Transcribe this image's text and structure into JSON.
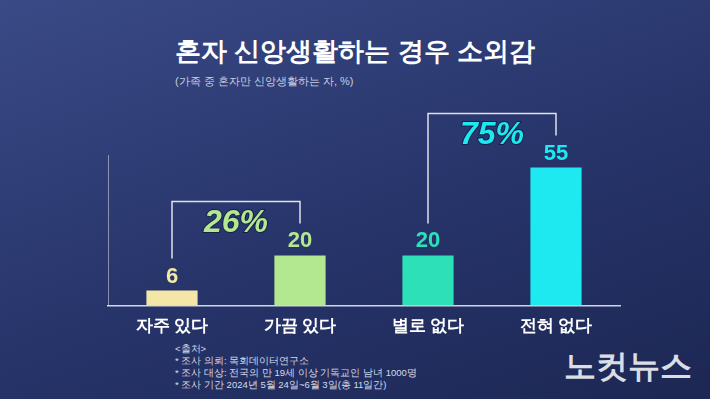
{
  "chart_data": {
    "type": "bar",
    "title": "혼자 신앙생활하는 경우 소외감",
    "subtitle": "(가족 중 혼자만 신앙생활하는 자, %)",
    "categories": [
      "자주 있다",
      "가끔 있다",
      "별로 없다",
      "전혀 없다"
    ],
    "values": [
      6,
      20,
      20,
      55
    ],
    "colors": [
      "#f3e6a6",
      "#b4e890",
      "#2de0b8",
      "#1ee8f0"
    ],
    "ylim": [
      0,
      60
    ],
    "yticks": [
      0,
      60
    ],
    "grid": false,
    "tick_labels": "x",
    "data_labels": true,
    "annotations": [
      {
        "text": "26%",
        "categories": [
          "자주 있다",
          "가끔 있다"
        ]
      },
      {
        "text": "75%",
        "categories": [
          "별로 없다",
          "전혀 없다"
        ]
      }
    ],
    "source_notes": [
      "<출처>",
      "* 조사 의뢰: 목회데이터연구소",
      "* 조사 대상: 전국의 만 19세 이상 기독교인 남녀 1000명",
      "* 조사 기간 2024년 5월 24일~6월 3일(총 11일간)"
    ],
    "logo": "노컷뉴스"
  }
}
